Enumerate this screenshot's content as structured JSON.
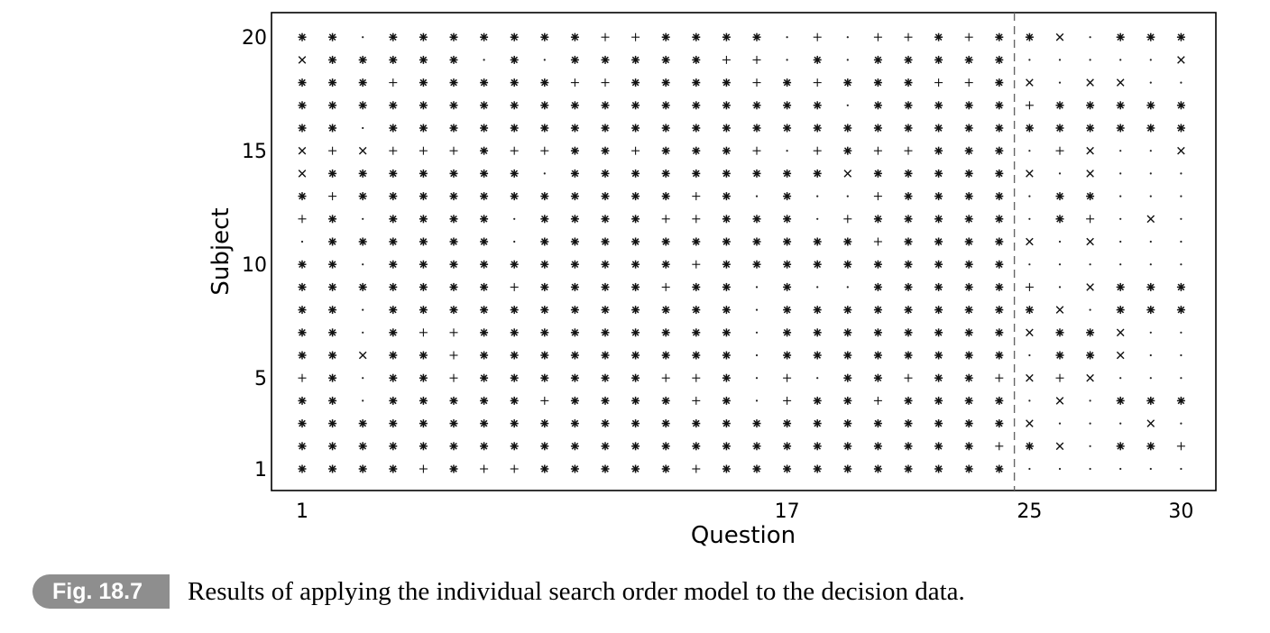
{
  "chart_data": {
    "type": "scatter",
    "xlabel": "Question",
    "ylabel": "Subject",
    "x_ticks": [
      "1",
      "17",
      "25",
      "30"
    ],
    "y_ticks": [
      "1",
      "5",
      "10",
      "15",
      "20"
    ],
    "xlim": [
      1,
      30
    ],
    "ylim": [
      1,
      20
    ],
    "divider_after_question": 24.5,
    "marker_legend": {
      "A": "asterisk",
      "P": "plus",
      "D": "dot",
      "X": "cross"
    },
    "rows": [
      {
        "subject": 20,
        "marks": "AADAAAAAAAPPAAAADPDPPAPA|AXDAAA"
      },
      {
        "subject": 19,
        "marks": "XAAAAADADAAAAAPPDADAAAAA|DDDDDX"
      },
      {
        "subject": 18,
        "marks": "AAAPAAAAAPPAAAAPAPAAAPPA|XDXXDD"
      },
      {
        "subject": 17,
        "marks": "AAAAAAAAAAAAAAAAAADAAAAA|PAAAAA"
      },
      {
        "subject": 16,
        "marks": "AADAAAAAAAAAAAAAAAAAAAAA|AAAAAA"
      },
      {
        "subject": 15,
        "marks": "XPXPPPAPPAAPAAAPDPAPPAAA|DPXDDX"
      },
      {
        "subject": 14,
        "marks": "XAAAAAAADAAAAAAAAAXAAAAA|XDXDDD"
      },
      {
        "subject": 13,
        "marks": "APAAAAAAAAAAAPADADDPAAAA|DAADDD"
      },
      {
        "subject": 12,
        "marks": "PADAAAADAAAAPPAAADPAAAAA|DAPDXD"
      },
      {
        "subject": 11,
        "marks": "DAAAAAADAAAAAAAAAAAPAAAA|XDXDDD"
      },
      {
        "subject": 10,
        "marks": "AADAAAAAAAAAAPAAAAAAAAAA|DDDDDD"
      },
      {
        "subject": 9,
        "marks": "AAAAAAAPAAAAPAADADDAAAAA|PDXAAA"
      },
      {
        "subject": 8,
        "marks": "AADAAAAAAAAAAAADAAAAAAAA|AXDAAA"
      },
      {
        "subject": 7,
        "marks": "AADAPPAAAAAAAAADAAAAAAAA|XAAXDD"
      },
      {
        "subject": 6,
        "marks": "AAXAAPAAAAAAAAADAAAAAAAA|DAAXDD"
      },
      {
        "subject": 5,
        "marks": "PADAAPAAAAAAPPADPDAAPAAP|XPXDDD"
      },
      {
        "subject": 4,
        "marks": "AADAAAAAPAAAAPADPAAPAAAA|DXDAAA"
      },
      {
        "subject": 3,
        "marks": "AAAAAAAAAAAAAAAAAAAAAAAA|XDDDXD"
      },
      {
        "subject": 2,
        "marks": "AAAAAAAAAAAAAAAAAAAAAAAP|AXDAAP"
      },
      {
        "subject": 1,
        "marks": "AAAAPAPPAAAAAPAAAAAAAAAA|DDDDDD"
      }
    ]
  },
  "caption": {
    "badge": "Fig. 18.7",
    "text": "Results of applying the individual search order model to the decision data."
  }
}
